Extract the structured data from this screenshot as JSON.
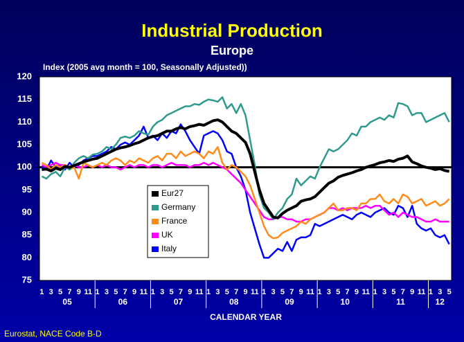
{
  "chart_data": {
    "type": "line",
    "title": "Industrial Production",
    "subtitle": "Europe",
    "y_axis_label": "Index (2005 avg month = 100, Seasonally Adjusted))",
    "x_axis_label": "CALENDAR YEAR",
    "source": "Eurostat, NACE Code B-D",
    "categories": [
      "1",
      null,
      "3",
      null,
      "5",
      null,
      "7",
      null,
      "9",
      null,
      "11",
      null,
      "1",
      null,
      "3",
      null,
      "5",
      null,
      "7",
      null,
      "9",
      null,
      "11",
      null,
      "1",
      null,
      "3",
      null,
      "5",
      null,
      "7",
      null,
      "9",
      null,
      "11",
      null,
      "1",
      null,
      "3",
      null,
      "5",
      null,
      "7",
      null,
      "9",
      null,
      "11",
      null,
      "1",
      null,
      "3",
      null,
      "5",
      null,
      "7",
      null,
      "9",
      null,
      "11",
      null,
      "1",
      null,
      "3",
      null,
      "5",
      null,
      "7",
      null,
      "9",
      null,
      "11",
      null,
      "1",
      null,
      "3",
      null,
      "5",
      null,
      "7",
      null,
      "9",
      null,
      "11",
      null,
      "1",
      null,
      "3",
      null,
      "5"
    ],
    "years": [
      "05",
      "06",
      "07",
      "08",
      "09",
      "10",
      "11",
      "12"
    ],
    "ylim": [
      75,
      120
    ],
    "yticks": [
      75,
      80,
      85,
      90,
      95,
      100,
      105,
      110,
      115,
      120
    ],
    "reference_line": 100,
    "grid": false,
    "legend": "lower center",
    "series": [
      {
        "name": "Eur27",
        "color": "#000000",
        "values": [
          99.5,
          99.6,
          99.2,
          99.8,
          99.5,
          100.2,
          100.0,
          100.4,
          100.8,
          101.2,
          101.5,
          101.8,
          102.0,
          102.5,
          103.0,
          103.5,
          104.0,
          104.3,
          104.5,
          104.8,
          105.2,
          105.5,
          106.0,
          106.5,
          106.8,
          107.0,
          107.5,
          108.0,
          108.0,
          108.5,
          108.8,
          108.5,
          109.0,
          109.2,
          109.5,
          109.3,
          109.8,
          110.3,
          110.5,
          110.0,
          109.0,
          108.0,
          107.5,
          106.5,
          105.5,
          103.0,
          99.0,
          95.0,
          92.0,
          90.5,
          89.0,
          88.8,
          89.8,
          90.5,
          91.0,
          91.5,
          92.5,
          92.8,
          93.0,
          93.5,
          94.5,
          95.5,
          96.5,
          97.0,
          97.8,
          98.2,
          98.5,
          98.8,
          99.2,
          99.5,
          100.0,
          100.3,
          100.6,
          101.0,
          101.2,
          101.5,
          101.3,
          101.8,
          102.0,
          102.5,
          101.2,
          100.8,
          100.3,
          100.0,
          99.8,
          99.5,
          99.7,
          99.3,
          99.1
        ]
      },
      {
        "name": "Germany",
        "color": "#2e9a8e",
        "values": [
          98.0,
          97.5,
          98.5,
          99.0,
          98.0,
          100.0,
          99.5,
          101.0,
          102.0,
          102.5,
          102.0,
          102.8,
          103.0,
          103.5,
          104.5,
          104.0,
          105.0,
          106.5,
          106.8,
          106.5,
          107.0,
          108.0,
          107.5,
          107.2,
          109.0,
          110.0,
          110.5,
          111.5,
          112.0,
          112.5,
          113.0,
          113.5,
          113.5,
          114.0,
          113.8,
          114.5,
          115.0,
          114.8,
          114.5,
          115.5,
          113.0,
          114.0,
          112.0,
          114.0,
          111.5,
          106.0,
          100.5,
          94.0,
          91.0,
          90.0,
          88.5,
          90.0,
          91.0,
          93.0,
          94.0,
          97.5,
          96.0,
          97.0,
          98.0,
          97.5,
          100.0,
          102.0,
          104.0,
          103.5,
          104.0,
          105.0,
          106.0,
          107.5,
          107.0,
          109.0,
          109.0,
          110.0,
          110.5,
          111.0,
          110.5,
          111.5,
          111.0,
          114.2,
          114.0,
          113.5,
          111.5,
          112.0,
          112.0,
          110.0,
          110.5,
          111.0,
          111.5,
          112.0,
          110.0
        ]
      },
      {
        "name": "France",
        "color": "#ff8c1a",
        "values": [
          101.0,
          100.5,
          99.5,
          100.5,
          100.0,
          100.5,
          99.5,
          100.0,
          97.5,
          101.0,
          100.5,
          100.0,
          100.5,
          101.0,
          100.5,
          101.5,
          102.0,
          101.5,
          100.5,
          101.5,
          101.0,
          102.0,
          101.5,
          101.0,
          102.0,
          102.5,
          101.5,
          103.0,
          103.0,
          102.0,
          103.5,
          102.5,
          103.0,
          103.5,
          103.0,
          102.0,
          103.5,
          103.0,
          104.5,
          101.0,
          99.5,
          100.5,
          100.0,
          99.0,
          98.0,
          96.0,
          93.0,
          90.0,
          87.0,
          85.0,
          84.3,
          84.5,
          85.5,
          86.0,
          86.5,
          87.0,
          88.0,
          87.5,
          88.5,
          89.0,
          89.5,
          90.0,
          91.0,
          92.0,
          90.5,
          90.5,
          91.0,
          91.0,
          90.5,
          92.0,
          92.0,
          93.0,
          93.0,
          94.0,
          92.5,
          92.0,
          93.0,
          92.0,
          94.0,
          93.5,
          92.0,
          92.5,
          93.0,
          91.5,
          92.0,
          92.5,
          91.5,
          92.0,
          93.0
        ]
      },
      {
        "name": "UK",
        "color": "#ff00ff",
        "values": [
          100.5,
          100.0,
          100.5,
          101.0,
          100.5,
          100.5,
          100.0,
          100.5,
          100.0,
          100.0,
          100.5,
          100.0,
          100.5,
          100.0,
          100.5,
          100.0,
          100.0,
          99.5,
          100.0,
          100.5,
          100.0,
          100.5,
          100.5,
          100.0,
          100.5,
          100.5,
          100.0,
          100.5,
          101.0,
          100.5,
          100.5,
          100.5,
          100.0,
          100.5,
          100.5,
          101.0,
          100.5,
          101.0,
          100.5,
          100.0,
          99.5,
          98.5,
          97.5,
          96.5,
          95.0,
          93.5,
          92.0,
          90.5,
          89.0,
          88.5,
          88.5,
          89.0,
          89.0,
          88.5,
          88.5,
          88.0,
          88.0,
          88.5,
          88.5,
          89.0,
          89.5,
          90.0,
          91.0,
          91.0,
          90.5,
          91.0,
          90.5,
          91.0,
          91.0,
          91.0,
          91.5,
          91.0,
          91.5,
          91.5,
          90.5,
          89.5,
          90.0,
          89.0,
          90.0,
          89.5,
          89.0,
          89.0,
          88.5,
          88.0,
          88.0,
          88.5,
          88.0,
          88.0,
          88.0
        ]
      },
      {
        "name": "Italy",
        "color": "#0000ff",
        "values": [
          100.0,
          99.5,
          101.5,
          100.0,
          100.5,
          99.5,
          101.0,
          100.0,
          100.5,
          101.5,
          102.0,
          102.5,
          102.5,
          103.0,
          103.5,
          104.5,
          104.0,
          105.0,
          105.5,
          105.0,
          106.0,
          107.0,
          109.0,
          106.5,
          107.0,
          106.0,
          107.5,
          106.5,
          108.0,
          107.5,
          109.5,
          108.0,
          106.0,
          104.5,
          103.0,
          107.0,
          107.5,
          108.0,
          107.5,
          106.0,
          103.5,
          103.0,
          100.0,
          98.0,
          95.0,
          90.0,
          86.5,
          83.0,
          80.0,
          80.0,
          81.0,
          82.0,
          81.5,
          83.5,
          81.5,
          84.0,
          84.5,
          84.5,
          85.0,
          87.5,
          87.0,
          87.5,
          88.0,
          88.5,
          89.0,
          89.5,
          89.0,
          88.5,
          89.5,
          90.0,
          89.5,
          89.0,
          90.0,
          90.5,
          91.0,
          90.0,
          89.5,
          91.5,
          91.0,
          89.0,
          91.5,
          87.5,
          86.5,
          86.0,
          86.5,
          85.0,
          84.5,
          85.0,
          83.0
        ]
      }
    ]
  }
}
